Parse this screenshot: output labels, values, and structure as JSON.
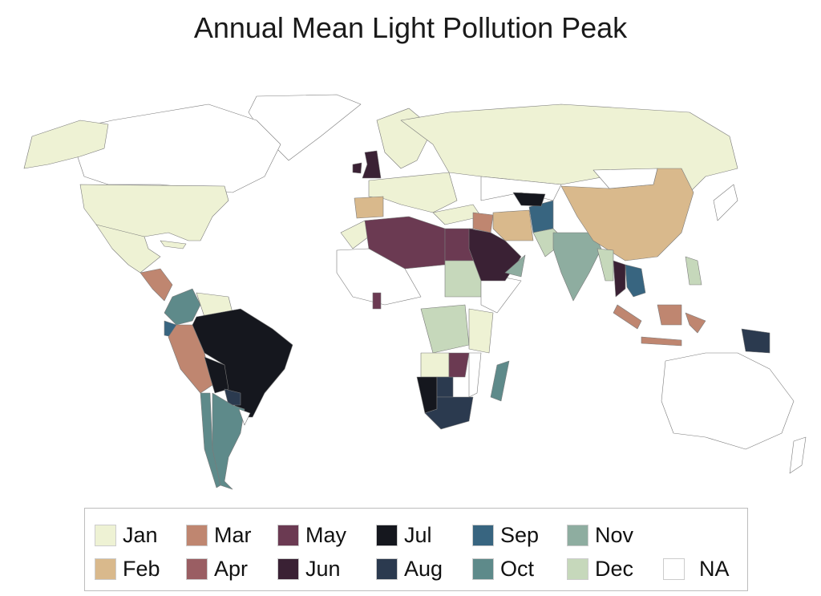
{
  "title": "Annual Mean Light Pollution Peak",
  "legend": [
    {
      "label": "Jan",
      "color": "#eef2d4"
    },
    {
      "label": "Mar",
      "color": "#bf8670"
    },
    {
      "label": "May",
      "color": "#6b3a52"
    },
    {
      "label": "Jul",
      "color": "#15171e"
    },
    {
      "label": "Sep",
      "color": "#386580"
    },
    {
      "label": "Nov",
      "color": "#8eada0"
    },
    {
      "label": "Feb",
      "color": "#d9b98c"
    },
    {
      "label": "Apr",
      "color": "#9a5e63"
    },
    {
      "label": "Jun",
      "color": "#3a2134"
    },
    {
      "label": "Aug",
      "color": "#2b3a4f"
    },
    {
      "label": "Oct",
      "color": "#5e8a8a"
    },
    {
      "label": "Dec",
      "color": "#c6d8bb"
    },
    {
      "label": "NA",
      "color": "#ffffff"
    }
  ],
  "regions": {
    "greenland": "NA",
    "canada": "NA",
    "alaska": "Jan",
    "usa": "Jan",
    "mexico": "Jan",
    "central-america": "Mar",
    "cuba": "Jan",
    "colombia": "Oct",
    "venezuela": "Jan",
    "ecuador": "Sep",
    "peru": "Mar",
    "brazil": "Jul",
    "bolivia": "Jul",
    "paraguay": "Aug",
    "argentina": "Oct",
    "chile": "Oct",
    "uruguay": "NA",
    "scandinavia": "Jan",
    "uk": "Jun",
    "ireland": "Jun",
    "western-europe": "Jan",
    "spain": "Feb",
    "russia": "Jan",
    "kazakhstan": "NA",
    "turkey": "Jan",
    "morocco": "Jan",
    "algeria-libya": "May",
    "egypt": "May",
    "west-africa": "NA",
    "sudan": "Dec",
    "drc": "Dec",
    "horn-of-africa": "NA",
    "kenya-tanzania": "Jan",
    "angola": "Jan",
    "namibia": "Jul",
    "botswana": "Aug",
    "south-africa": "Aug",
    "zimbabwe": "May",
    "mozambique": "NA",
    "madagascar": "Oct",
    "ghana": "May",
    "saudi-arabia": "Jun",
    "iraq": "Mar",
    "iran": "Feb",
    "afghanistan": "Sep",
    "pakistan": "Dec",
    "oman": "Nov",
    "uzbekistan": "Jul",
    "india": "Nov",
    "china": "Feb",
    "mongolia": "NA",
    "myanmar": "Dec",
    "thailand": "Jun",
    "vietnam-cambodia": "Sep",
    "sumatra": "Mar",
    "java": "Mar",
    "borneo": "Mar",
    "sulawesi": "Mar",
    "papua-new-guinea": "Aug",
    "japan": "NA",
    "philippines": "Dec",
    "australia": "NA",
    "new-zealand": "NA"
  }
}
